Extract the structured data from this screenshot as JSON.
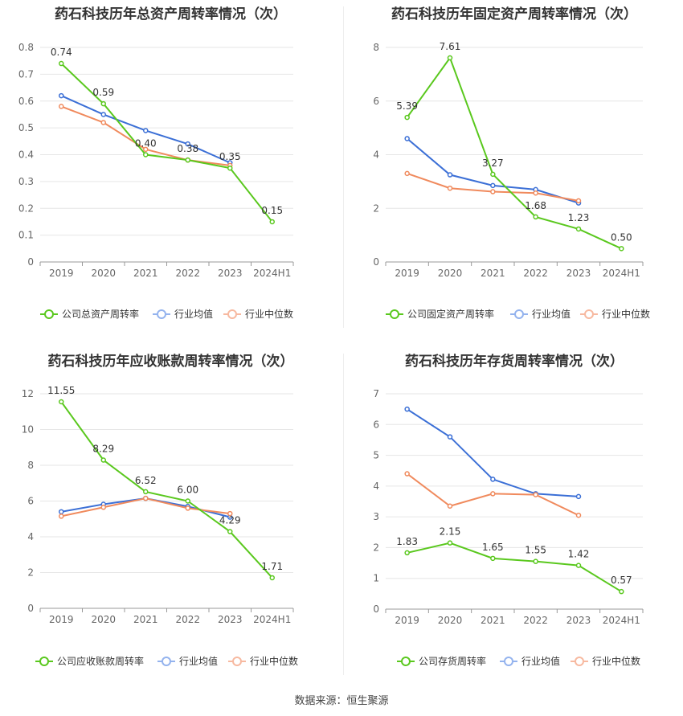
{
  "source": "数据来源：恒生聚源",
  "chart_data": [
    {
      "type": "line",
      "title": "药石科技历年总资产周转率情况（次）",
      "categories": [
        "2019",
        "2020",
        "2021",
        "2022",
        "2023",
        "2024H1"
      ],
      "ylim": [
        0,
        0.8
      ],
      "yticks": [
        "0",
        "0.1",
        "0.2",
        "0.3",
        "0.4",
        "0.5",
        "0.6",
        "0.7",
        "0.8"
      ],
      "series": [
        {
          "name": "公司总资产周转率",
          "color": "#5ac81e",
          "values": [
            0.74,
            0.59,
            0.4,
            0.38,
            0.35,
            0.15
          ],
          "labels": [
            "0.74",
            "0.59",
            "0.40",
            "0.38",
            "0.35",
            "0.15"
          ]
        },
        {
          "name": "行业均值",
          "color": "#3b6fd6",
          "values": [
            0.62,
            0.55,
            0.49,
            0.44,
            0.37,
            null
          ]
        },
        {
          "name": "行业中位数",
          "color": "#f08a5d",
          "values": [
            0.58,
            0.52,
            0.42,
            0.38,
            0.36,
            null
          ]
        }
      ]
    },
    {
      "type": "line",
      "title": "药石科技历年固定资产周转率情况（次）",
      "categories": [
        "2019",
        "2020",
        "2021",
        "2022",
        "2023",
        "2024H1"
      ],
      "ylim": [
        0,
        8
      ],
      "yticks": [
        "0",
        "2",
        "4",
        "6",
        "8"
      ],
      "series": [
        {
          "name": "公司固定资产周转率",
          "color": "#5ac81e",
          "values": [
            5.39,
            7.61,
            3.27,
            1.68,
            1.23,
            0.5
          ],
          "labels": [
            "5.39",
            "7.61",
            "3.27",
            "1.68",
            "1.23",
            "0.50"
          ]
        },
        {
          "name": "行业均值",
          "color": "#3b6fd6",
          "values": [
            4.6,
            3.25,
            2.85,
            2.7,
            2.2,
            null
          ]
        },
        {
          "name": "行业中位数",
          "color": "#f08a5d",
          "values": [
            3.3,
            2.75,
            2.62,
            2.57,
            2.28,
            null
          ]
        }
      ]
    },
    {
      "type": "line",
      "title": "药石科技历年应收账款周转率情况（次）",
      "categories": [
        "2019",
        "2020",
        "2021",
        "2022",
        "2023",
        "2024H1"
      ],
      "ylim": [
        0,
        12
      ],
      "yticks": [
        "0",
        "2",
        "4",
        "6",
        "8",
        "10",
        "12"
      ],
      "series": [
        {
          "name": "公司应收账款周转率",
          "color": "#5ac81e",
          "values": [
            11.55,
            8.29,
            6.52,
            6.0,
            4.29,
            1.71
          ],
          "labels": [
            "11.55",
            "8.29",
            "6.52",
            "6.00",
            "4.29",
            "1.71"
          ]
        },
        {
          "name": "行业均值",
          "color": "#3b6fd6",
          "values": [
            5.4,
            5.82,
            6.15,
            5.7,
            5.1,
            null
          ]
        },
        {
          "name": "行业中位数",
          "color": "#f08a5d",
          "values": [
            5.15,
            5.65,
            6.15,
            5.6,
            5.3,
            null
          ]
        }
      ]
    },
    {
      "type": "line",
      "title": "药石科技历年存货周转率情况（次）",
      "categories": [
        "2019",
        "2020",
        "2021",
        "2022",
        "2023",
        "2024H1"
      ],
      "ylim": [
        0,
        7
      ],
      "yticks": [
        "0",
        "1",
        "2",
        "3",
        "4",
        "5",
        "6",
        "7"
      ],
      "series": [
        {
          "name": "公司存货周转率",
          "color": "#5ac81e",
          "values": [
            1.83,
            2.15,
            1.65,
            1.55,
            1.42,
            0.57
          ],
          "labels": [
            "1.83",
            "2.15",
            "1.65",
            "1.55",
            "1.42",
            "0.57"
          ]
        },
        {
          "name": "行业均值",
          "color": "#3b6fd6",
          "values": [
            6.5,
            5.6,
            4.22,
            3.75,
            3.66,
            null
          ]
        },
        {
          "name": "行业中位数",
          "color": "#f08a5d",
          "values": [
            4.4,
            3.35,
            3.75,
            3.72,
            3.05,
            null
          ]
        }
      ]
    }
  ]
}
